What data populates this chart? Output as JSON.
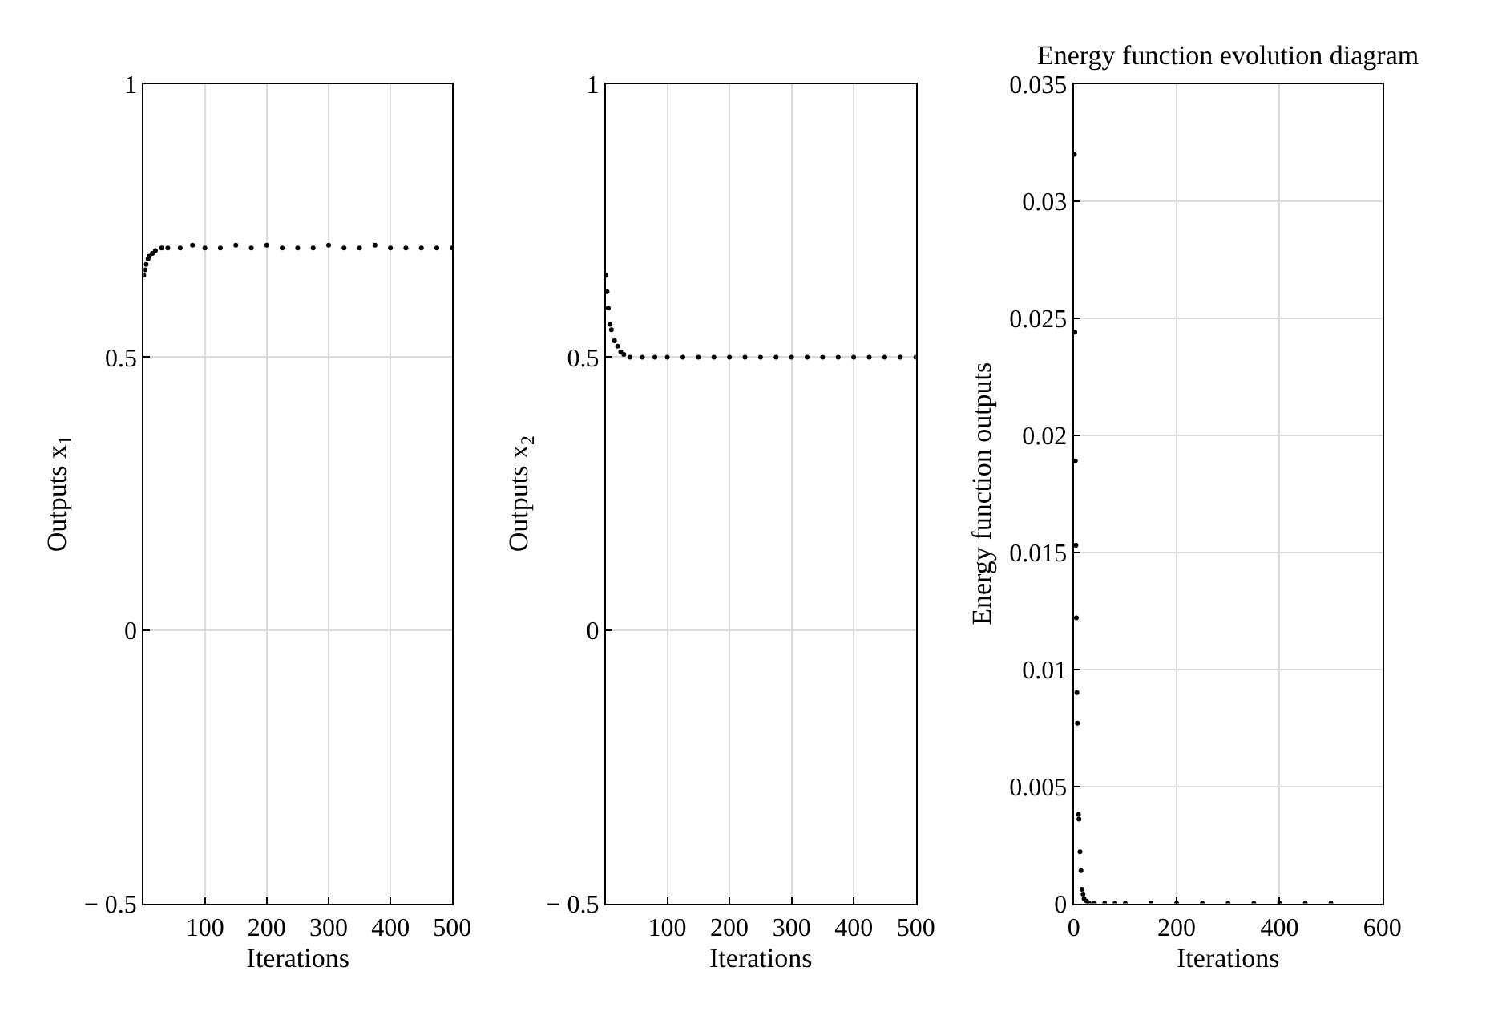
{
  "chart_data": [
    {
      "type": "scatter",
      "ylabel": "Outputs x$_{1}$",
      "xlabel": "Iterations",
      "xlim": [
        1,
        500
      ],
      "xticks": [
        100,
        200,
        300,
        400,
        500
      ],
      "ylim": [
        -0.5,
        1
      ],
      "yticks": [
        {
          "value": -0.5,
          "label": "− 0.5"
        },
        0,
        0.5,
        1
      ],
      "grid": true,
      "marker": "circle",
      "series": [
        {
          "color": "#000000",
          "x": [
            1,
            3,
            5,
            8,
            10,
            15,
            20,
            30,
            40,
            60,
            80,
            100,
            125,
            150,
            175,
            200,
            225,
            250,
            275,
            300,
            325,
            350,
            375,
            400,
            425,
            450,
            475,
            500
          ],
          "values": [
            0.65,
            0.66,
            0.67,
            0.68,
            0.685,
            0.69,
            0.695,
            0.7,
            0.7,
            0.7,
            0.705,
            0.7,
            0.7,
            0.705,
            0.7,
            0.705,
            0.7,
            0.7,
            0.7,
            0.705,
            0.7,
            0.7,
            0.705,
            0.7,
            0.7,
            0.7,
            0.7,
            0.7
          ]
        }
      ]
    },
    {
      "type": "scatter",
      "ylabel": "Outputs x$_{2}$",
      "xlabel": "Iterations",
      "xlim": [
        1,
        500
      ],
      "xticks": [
        100,
        200,
        300,
        400,
        500
      ],
      "ylim": [
        -0.5,
        1
      ],
      "yticks": [
        {
          "value": -0.5,
          "label": "− 0.5"
        },
        0,
        0.5,
        1
      ],
      "grid": true,
      "marker": "circle",
      "series": [
        {
          "color": "#000000",
          "x": [
            1,
            3,
            5,
            8,
            10,
            15,
            20,
            25,
            30,
            40,
            60,
            80,
            100,
            125,
            150,
            175,
            200,
            225,
            250,
            275,
            300,
            325,
            350,
            375,
            400,
            425,
            450,
            475,
            500
          ],
          "values": [
            0.65,
            0.62,
            0.59,
            0.56,
            0.55,
            0.53,
            0.52,
            0.51,
            0.505,
            0.5,
            0.5,
            0.5,
            0.5,
            0.5,
            0.5,
            0.5,
            0.5,
            0.5,
            0.5,
            0.5,
            0.5,
            0.5,
            0.5,
            0.5,
            0.5,
            0.5,
            0.5,
            0.5,
            0.5
          ]
        }
      ]
    },
    {
      "type": "scatter",
      "title": "Energy function evolution diagram",
      "ylabel": "Energy function outputs",
      "xlabel": "Iterations",
      "xlim": [
        0,
        600
      ],
      "xticks": [
        0,
        200,
        400,
        600
      ],
      "ylim": [
        0,
        0.035
      ],
      "yticks": [
        0,
        0.005,
        0.01,
        0.015,
        0.02,
        0.025,
        0.03,
        0.035
      ],
      "grid": true,
      "marker": "circle",
      "series": [
        {
          "color": "#000000",
          "x": [
            1,
            2,
            3,
            4,
            5,
            6,
            7,
            9,
            10,
            12,
            14,
            16,
            18,
            20,
            25,
            30,
            40,
            60,
            80,
            100,
            150,
            200,
            250,
            300,
            350,
            400,
            450,
            500
          ],
          "values": [
            0.032,
            0.0244,
            0.0189,
            0.0153,
            0.0122,
            0.009,
            0.0077,
            0.0038,
            0.0036,
            0.0022,
            0.0014,
            0.0006,
            0.0004,
            0.0002,
            0.0001,
            0,
            0,
            0,
            0,
            0,
            0,
            0,
            0,
            0,
            0,
            0,
            0,
            0
          ]
        }
      ]
    }
  ]
}
